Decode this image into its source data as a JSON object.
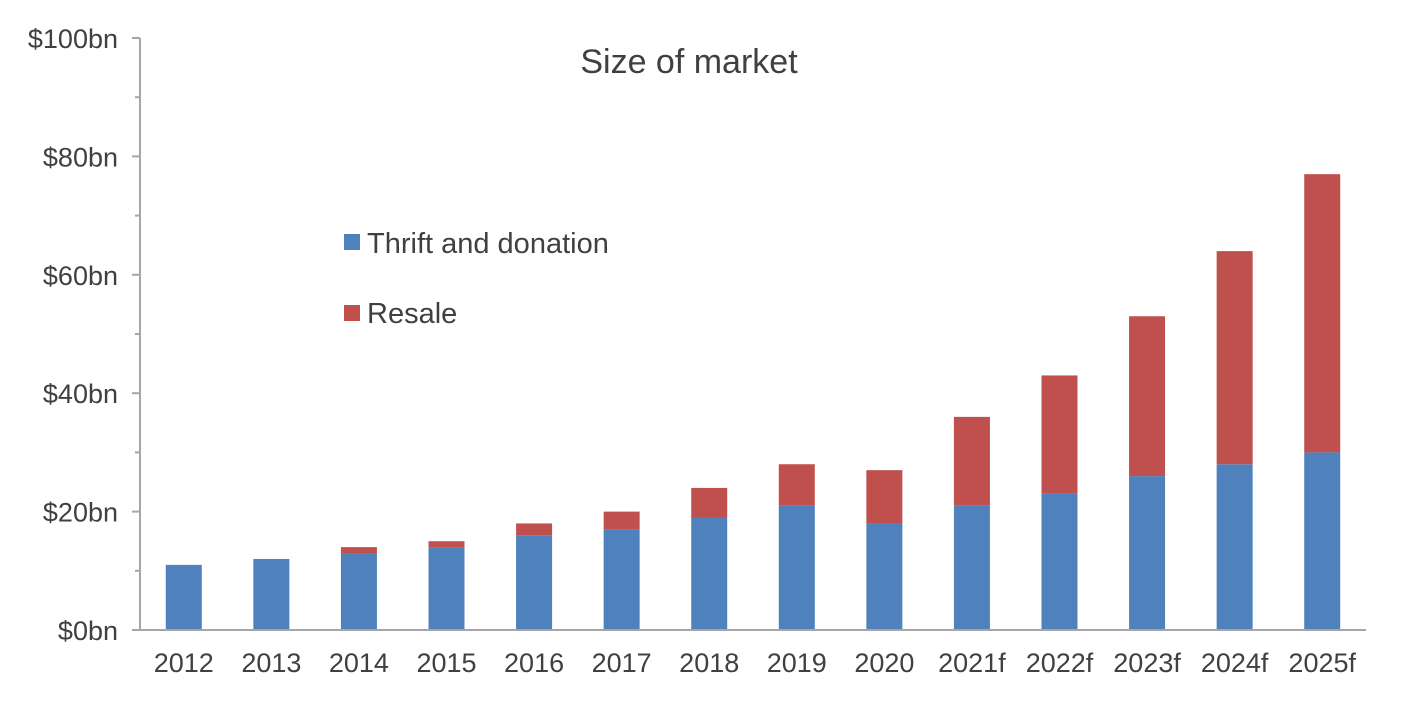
{
  "chart_data": {
    "type": "bar",
    "stacked": true,
    "title": "Size of market",
    "xlabel": "",
    "ylabel": "",
    "categories": [
      "2012",
      "2013",
      "2014",
      "2015",
      "2016",
      "2017",
      "2018",
      "2019",
      "2020",
      "2021f",
      "2022f",
      "2023f",
      "2024f",
      "2025f"
    ],
    "series": [
      {
        "name": "Thrift and donation",
        "color": "#4f81bd",
        "values": [
          11,
          12,
          13,
          14,
          16,
          17,
          19,
          21,
          18,
          21,
          23,
          26,
          28,
          30
        ]
      },
      {
        "name": "Resale",
        "color": "#c0504d",
        "values": [
          0,
          0,
          1,
          1,
          2,
          3,
          5,
          7,
          9,
          15,
          20,
          27,
          36,
          47
        ]
      }
    ],
    "ylim": [
      0,
      100
    ],
    "yticks": [
      0,
      20,
      40,
      60,
      80,
      100
    ],
    "ytick_labels": [
      "$0bn",
      "$20bn",
      "$40bn",
      "$60bn",
      "$80bn",
      "$100bn"
    ],
    "grid": false,
    "legend_position": "upper-left inside plot"
  }
}
